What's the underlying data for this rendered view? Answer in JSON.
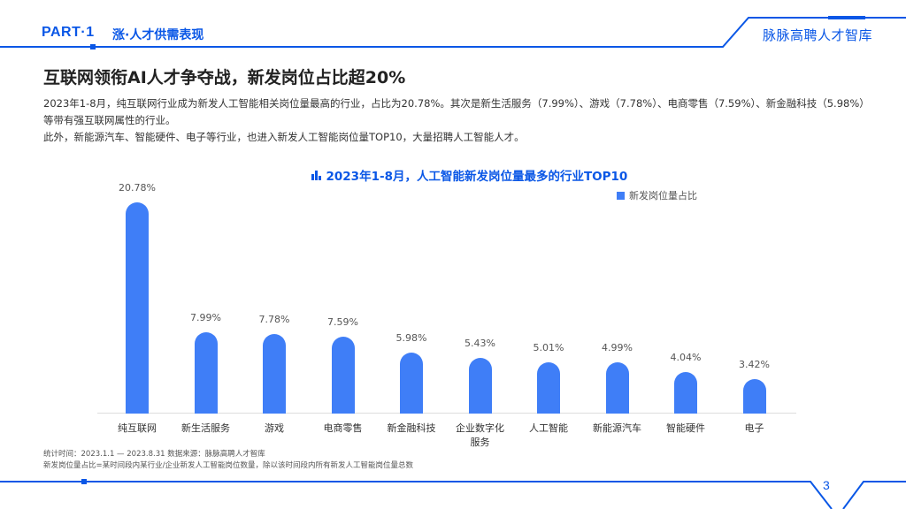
{
  "header": {
    "part": "PART·1",
    "section": "涨·人才供需表现",
    "brand": "脉脉高聘人才智库",
    "accent_color": "#0a57e6"
  },
  "main": {
    "title": "互联网领衔AI人才争夺战，新发岗位占比超20%",
    "paragraphs": [
      "2023年1-8月，纯互联网行业成为新发人工智能相关岗位量最高的行业，占比为20.78%。其次是新生活服务（7.99%）、游戏（7.78%）、电商零售（7.59%）、新金融科技（5.98%）等带有强互联网属性的行业。",
      "此外，新能源汽车、智能硬件、电子等行业，也进入新发人工智能岗位量TOP10，大量招聘人工智能人才。"
    ]
  },
  "chart_data": {
    "type": "bar",
    "title": "2023年1-8月，人工智能新发岗位量最多的行业TOP10",
    "title_icon": "bar-chart-icon",
    "categories": [
      "纯互联网",
      "新生活服务",
      "游戏",
      "电商零售",
      "新金融科技",
      "企业数字化服务",
      "人工智能",
      "新能源汽车",
      "智能硬件",
      "电子"
    ],
    "category_lines": [
      [
        "纯互联网"
      ],
      [
        "新生活服务"
      ],
      [
        "游戏"
      ],
      [
        "电商零售"
      ],
      [
        "新金融科技"
      ],
      [
        "企业数字化",
        "服务"
      ],
      [
        "人工智能"
      ],
      [
        "新能源汽车"
      ],
      [
        "智能硬件"
      ],
      [
        "电子"
      ]
    ],
    "series": [
      {
        "name": "新发岗位量占比",
        "values": [
          20.78,
          7.99,
          7.78,
          7.59,
          5.98,
          5.43,
          5.01,
          4.99,
          4.04,
          3.42
        ],
        "labels": [
          "20.78%",
          "7.99%",
          "7.78%",
          "7.59%",
          "5.98%",
          "5.43%",
          "5.01%",
          "4.99%",
          "4.04%",
          "3.42%"
        ],
        "color": "#3f7ef7"
      }
    ],
    "xlabel": "",
    "ylabel": "",
    "ylim": [
      0,
      21
    ],
    "grid": false,
    "legend_position": "top-right",
    "legend": [
      "新发岗位量占比"
    ]
  },
  "footer": {
    "note_line1": "统计时间：2023.1.1 — 2023.8.31  数据来源：脉脉高聘人才智库",
    "note_line2": "新发岗位量占比=某时间段内某行业/企业新发人工智能岗位数量，除以该时间段内所有新发人工智能岗位量总数",
    "page_number": "3"
  }
}
